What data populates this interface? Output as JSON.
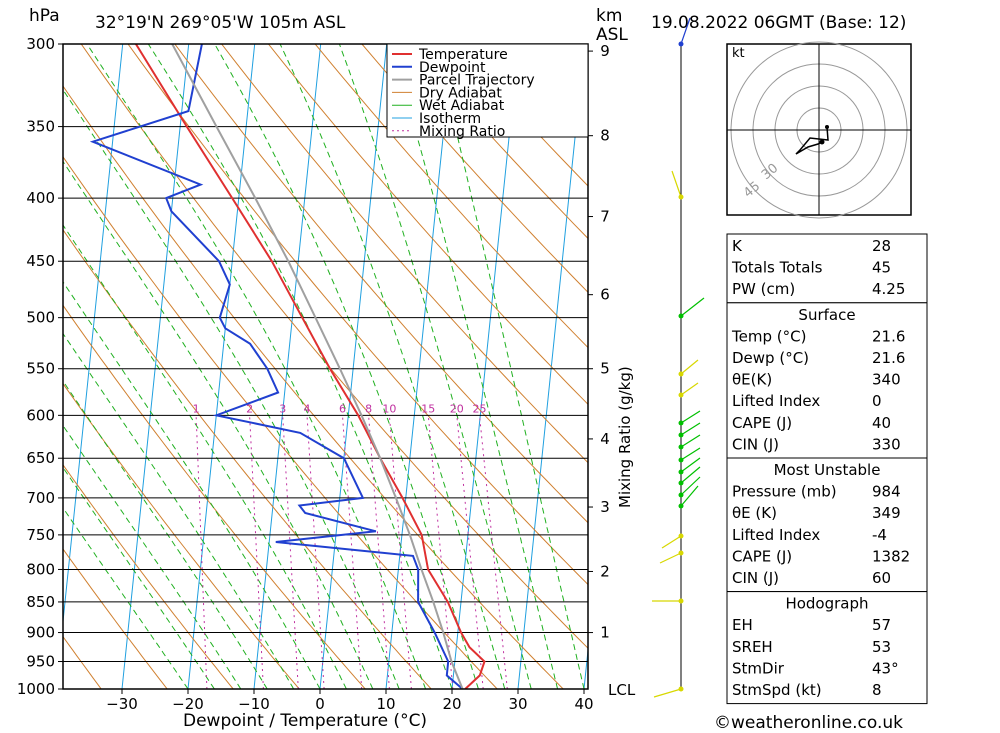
{
  "header": {
    "pressure_unit": "hPa",
    "location": "32°19'N  269°05'W  105m  ASL",
    "height_unit_top": "km",
    "height_unit_bottom": "ASL",
    "datetime": "19.08.2022  06GMT  (Base: 12)"
  },
  "colors": {
    "temperature": "#e03030",
    "dewpoint": "#2040d0",
    "parcel": "#a0a0a0",
    "dry_adiabat": "#d08030",
    "wet_adiabat": "#20b020",
    "isotherm": "#20a0e0",
    "mixing_ratio": "#c030a0",
    "wind": "#d8d800",
    "wind_green": "#00c000"
  },
  "chart_data": {
    "type": "line",
    "title": "Skew-T log-P diagram",
    "xlabel": "Dewpoint / Temperature (°C)",
    "ylabel": "hPa",
    "y2label": "Mixing Ratio (g/kg)",
    "xlim": [
      -40,
      40
    ],
    "ylim_pressure": [
      1000,
      300
    ],
    "x_ticks": [
      "−30",
      "−20",
      "−10",
      "0",
      "10",
      "20",
      "30",
      "40"
    ],
    "x_tick_values": [
      -30,
      -20,
      -10,
      0,
      10,
      20,
      30,
      40
    ],
    "pressure_levels": [
      300,
      350,
      400,
      450,
      500,
      550,
      600,
      650,
      700,
      750,
      800,
      850,
      900,
      950,
      1000
    ],
    "pressure_labels": [
      "300",
      "350",
      "400",
      "450",
      "500",
      "550",
      "600",
      "650",
      "700",
      "750",
      "800",
      "850",
      "900",
      "950",
      "1000"
    ],
    "km_levels": [
      1,
      2,
      3,
      4,
      5,
      6,
      7,
      8,
      9
    ],
    "km_pressures": [
      900,
      803,
      712,
      627,
      550,
      479,
      414,
      356,
      304
    ],
    "km_labels": [
      "1",
      "2",
      "3",
      "4",
      "5",
      "6",
      "7",
      "8",
      "9"
    ],
    "lcl_label": "LCL",
    "mixing_ratio_values": [
      1,
      2,
      3,
      4,
      6,
      8,
      10,
      15,
      20,
      25
    ],
    "mixing_ratio_labels": [
      "1",
      "2",
      "3",
      "4",
      "6",
      "8",
      "10",
      "15",
      "20",
      "25"
    ],
    "legend": {
      "placement": "top-center",
      "entries": [
        "Temperature",
        "Dewpoint",
        "Parcel Trajectory",
        "Dry Adiabat",
        "Wet Adiabat",
        "Isotherm",
        "Mixing Ratio"
      ]
    },
    "series": [
      {
        "name": "Temperature",
        "points": [
          [
            1000,
            22
          ],
          [
            975,
            24
          ],
          [
            950,
            24.5
          ],
          [
            925,
            22
          ],
          [
            900,
            20.5
          ],
          [
            850,
            18
          ],
          [
            800,
            14.5
          ],
          [
            750,
            13
          ],
          [
            700,
            9.5
          ],
          [
            650,
            5.5
          ],
          [
            600,
            1.5
          ],
          [
            550,
            -3.5
          ],
          [
            500,
            -8.5
          ],
          [
            450,
            -14
          ],
          [
            400,
            -21
          ],
          [
            350,
            -29
          ],
          [
            300,
            -38
          ]
        ]
      },
      {
        "name": "Dewpoint",
        "points": [
          [
            1000,
            21.6
          ],
          [
            975,
            19
          ],
          [
            950,
            19
          ],
          [
            900,
            16.5
          ],
          [
            850,
            13.5
          ],
          [
            800,
            13
          ],
          [
            780,
            12
          ],
          [
            760,
            -9
          ],
          [
            745,
            6
          ],
          [
            720,
            -5
          ],
          [
            710,
            -6
          ],
          [
            700,
            3.5
          ],
          [
            650,
            0
          ],
          [
            620,
            -7
          ],
          [
            600,
            -20
          ],
          [
            575,
            -11
          ],
          [
            550,
            -13
          ],
          [
            525,
            -16
          ],
          [
            510,
            -20
          ],
          [
            500,
            -21
          ],
          [
            470,
            -20
          ],
          [
            450,
            -22
          ],
          [
            410,
            -30
          ],
          [
            400,
            -31
          ],
          [
            390,
            -26
          ],
          [
            360,
            -43
          ],
          [
            340,
            -29
          ],
          [
            300,
            -28
          ]
        ]
      },
      {
        "name": "Parcel Trajectory",
        "points": [
          [
            1000,
            21.6
          ],
          [
            950,
            19.5
          ],
          [
            900,
            17.8
          ],
          [
            850,
            15.8
          ],
          [
            800,
            13.5
          ],
          [
            750,
            11.2
          ],
          [
            700,
            8.5
          ],
          [
            650,
            5.5
          ],
          [
            600,
            2
          ],
          [
            550,
            -2
          ],
          [
            500,
            -6.5
          ],
          [
            450,
            -11.5
          ],
          [
            400,
            -17.5
          ],
          [
            350,
            -24.5
          ],
          [
            300,
            -32.5
          ]
        ]
      }
    ]
  },
  "hodograph": {
    "unit_label": "kt",
    "ring_labels": [
      "30",
      "45"
    ]
  },
  "indices": {
    "general": [
      {
        "label": "K",
        "value": "28"
      },
      {
        "label": "Totals Totals",
        "value": "45"
      },
      {
        "label": "PW (cm)",
        "value": "4.25"
      }
    ],
    "surface_title": "Surface",
    "surface": [
      {
        "label": "Temp (°C)",
        "value": "21.6"
      },
      {
        "label": "Dewp (°C)",
        "value": "21.6"
      },
      {
        "label": "θE(K)",
        "value": "340"
      },
      {
        "label": "Lifted Index",
        "value": "0"
      },
      {
        "label": "CAPE (J)",
        "value": "40"
      },
      {
        "label": "CIN (J)",
        "value": "330"
      }
    ],
    "unstable_title": "Most Unstable",
    "unstable": [
      {
        "label": "Pressure (mb)",
        "value": "984"
      },
      {
        "label": "θE (K)",
        "value": "349"
      },
      {
        "label": "Lifted Index",
        "value": "-4"
      },
      {
        "label": "CAPE (J)",
        "value": "1382"
      },
      {
        "label": "CIN (J)",
        "value": "60"
      }
    ],
    "hodograph_title": "Hodograph",
    "hodo": [
      {
        "label": "EH",
        "value": "57"
      },
      {
        "label": "SREH",
        "value": "53"
      },
      {
        "label": "StmDir",
        "value": "43°"
      },
      {
        "label": "StmSpd (kt)",
        "value": "8"
      }
    ]
  },
  "footer": {
    "copyright": "©weatheronline.co.uk"
  }
}
